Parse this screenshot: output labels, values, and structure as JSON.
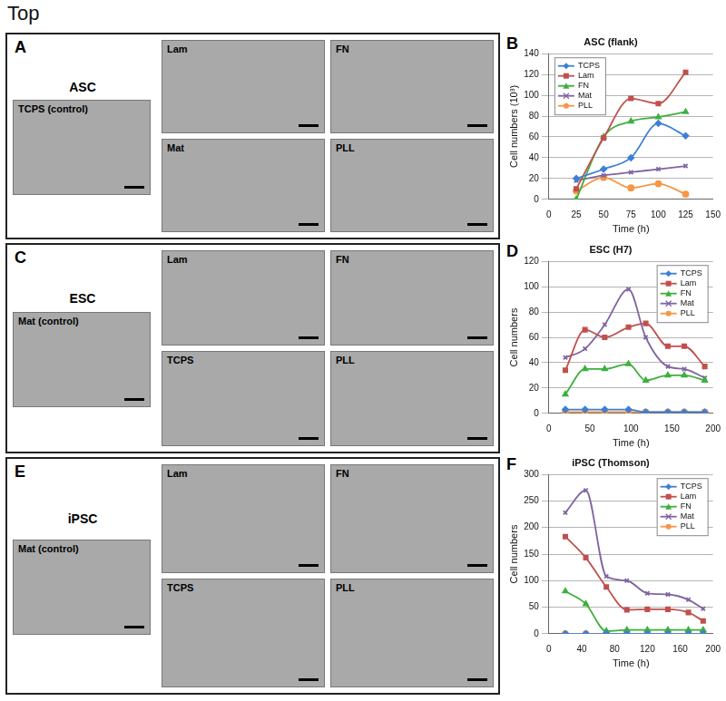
{
  "heading": "Top",
  "image_panels": [
    {
      "panel": "A",
      "cell_type": "ASC",
      "control": "TCPS (control)",
      "substrates": [
        "Lam",
        "FN",
        "Mat",
        "PLL"
      ]
    },
    {
      "panel": "C",
      "cell_type": "ESC",
      "control": "Mat (control)",
      "substrates": [
        "Lam",
        "FN",
        "TCPS",
        "PLL"
      ]
    },
    {
      "panel": "E",
      "cell_type": "iPSC",
      "control": "Mat (control)",
      "substrates": [
        "Lam",
        "FN",
        "TCPS",
        "PLL"
      ]
    }
  ],
  "chart_panels": [
    "B",
    "D",
    "F"
  ],
  "chart_data": [
    {
      "type": "line",
      "title": "ASC (flank)",
      "x_label": "Time (h)",
      "y_label": "Cell numbers (10³)",
      "x": [
        25,
        50,
        75,
        100,
        125
      ],
      "xlim": [
        0,
        150
      ],
      "xticks": [
        0,
        25,
        50,
        75,
        100,
        125,
        150
      ],
      "ylim": [
        0,
        140
      ],
      "yticks": [
        0,
        20,
        40,
        60,
        80,
        100,
        120,
        140
      ],
      "grid": true,
      "legend": "upper left",
      "series": [
        {
          "name": "TCPS",
          "color": "#3d7fd6",
          "marker": "diamond",
          "values": [
            20,
            29,
            40,
            73,
            61
          ]
        },
        {
          "name": "Lam",
          "color": "#c0504d",
          "marker": "square",
          "values": [
            10,
            59,
            97,
            92,
            122
          ]
        },
        {
          "name": "FN",
          "color": "#3db03d",
          "marker": "triangle",
          "values": [
            0,
            60,
            75,
            79,
            84
          ]
        },
        {
          "name": "Mat",
          "color": "#8064a2",
          "marker": "x",
          "values": [
            18,
            23,
            26,
            29,
            32
          ]
        },
        {
          "name": "PLL",
          "color": "#f79646",
          "marker": "circle",
          "values": [
            8,
            21,
            11,
            15,
            5
          ]
        }
      ]
    },
    {
      "type": "line",
      "title": "ESC (H7)",
      "x_label": "Time (h)",
      "y_label": "Cell numbers",
      "x": [
        20,
        44,
        68,
        97,
        118,
        145,
        165,
        190
      ],
      "xlim": [
        0,
        200
      ],
      "xticks": [
        0,
        50,
        100,
        150,
        200
      ],
      "ylim": [
        0,
        120
      ],
      "yticks": [
        0,
        20,
        40,
        60,
        80,
        100,
        120
      ],
      "grid": true,
      "legend": "upper right",
      "series": [
        {
          "name": "TCPS",
          "color": "#3d7fd6",
          "marker": "diamond",
          "values": [
            3,
            3,
            3,
            3,
            1,
            1,
            1,
            1
          ]
        },
        {
          "name": "Lam",
          "color": "#c0504d",
          "marker": "square",
          "values": [
            34,
            66,
            60,
            68,
            71,
            53,
            53,
            37
          ]
        },
        {
          "name": "FN",
          "color": "#3db03d",
          "marker": "triangle",
          "values": [
            15,
            35,
            35,
            39,
            26,
            30,
            30,
            26
          ]
        },
        {
          "name": "Mat",
          "color": "#8064a2",
          "marker": "x",
          "values": [
            44,
            51,
            70,
            98,
            60,
            37,
            35,
            28
          ]
        },
        {
          "name": "PLL",
          "color": "#f79646",
          "marker": "circle",
          "values": [
            1,
            1,
            1,
            1,
            1,
            1,
            1,
            1
          ]
        }
      ]
    },
    {
      "type": "line",
      "title": "iPSC (Thomson)",
      "x_label": "Time (h)",
      "y_label": "Cell numbers",
      "x": [
        20,
        45,
        70,
        95,
        120,
        145,
        170,
        188
      ],
      "xlim": [
        0,
        200
      ],
      "xticks": [
        0,
        40,
        80,
        120,
        160,
        200
      ],
      "ylim": [
        0,
        300
      ],
      "yticks": [
        0,
        50,
        100,
        150,
        200,
        250,
        300
      ],
      "grid": true,
      "legend": "upper right",
      "series": [
        {
          "name": "TCPS",
          "color": "#3d7fd6",
          "marker": "diamond",
          "values": [
            0,
            0,
            0,
            0,
            0,
            0,
            0,
            0
          ]
        },
        {
          "name": "Lam",
          "color": "#c0504d",
          "marker": "square",
          "values": [
            183,
            143,
            88,
            45,
            46,
            46,
            40,
            24
          ]
        },
        {
          "name": "FN",
          "color": "#3db03d",
          "marker": "triangle",
          "values": [
            80,
            56,
            5,
            7,
            7,
            7,
            7,
            7
          ]
        },
        {
          "name": "Mat",
          "color": "#8064a2",
          "marker": "x",
          "values": [
            228,
            270,
            108,
            100,
            76,
            74,
            64,
            47
          ]
        },
        {
          "name": "PLL",
          "color": "#f79646",
          "marker": "circle",
          "values": [
            0,
            0,
            0,
            0,
            0,
            0,
            0,
            0
          ]
        }
      ]
    }
  ]
}
